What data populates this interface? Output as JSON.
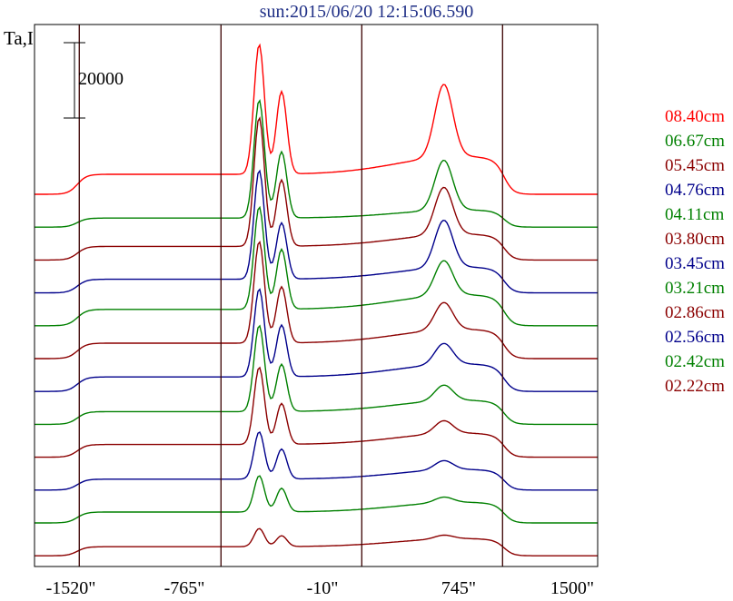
{
  "chart_data": {
    "type": "line",
    "title": "sun:2015/06/20 12:15:06.590",
    "ylabel": "Ta,I",
    "xlabel": "",
    "scale_bar": {
      "label": "20000",
      "value": 20000
    },
    "x_ticks": [
      "-1520\"",
      "-765\"",
      "-10\"",
      "745\"",
      "1500\""
    ],
    "x_tick_values": [
      -1520,
      -765,
      -10,
      745,
      1500
    ],
    "xlim": [
      -1520,
      1500
    ],
    "vertical_lines": [
      -1280,
      -520,
      235,
      990
    ],
    "grid": false,
    "legend_position": "right",
    "series": [
      {
        "name": "08.40cm",
        "color": "#ff0000"
      },
      {
        "name": "06.67cm",
        "color": "#008000"
      },
      {
        "name": "05.45cm",
        "color": "#8b0000"
      },
      {
        "name": "04.76cm",
        "color": "#00008b"
      },
      {
        "name": "04.11cm",
        "color": "#008000"
      },
      {
        "name": "03.80cm",
        "color": "#8b0000"
      },
      {
        "name": "03.45cm",
        "color": "#00008b"
      },
      {
        "name": "03.21cm",
        "color": "#008000"
      },
      {
        "name": "02.86cm",
        "color": "#8b0000"
      },
      {
        "name": "02.56cm",
        "color": "#00008b"
      },
      {
        "name": "02.42cm",
        "color": "#008000"
      },
      {
        "name": "02.22cm",
        "color": "#8b0000"
      }
    ]
  }
}
